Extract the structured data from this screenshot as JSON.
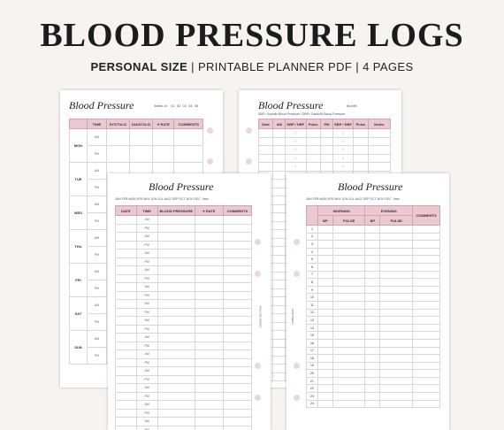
{
  "header": {
    "title": "BLOOD PRESSURE LOGS",
    "subtitle_bold": "PERSONAL SIZE",
    "subtitle_parts": [
      "PRINTABLE PLANNER PDF",
      "4 PAGES"
    ],
    "separator": "|"
  },
  "accent_color": "#ecc9d0",
  "weekly_page": {
    "title": "Blood Pressure",
    "week_label": "Week of:",
    "week_numbers": [
      "01",
      "02",
      "03",
      "04",
      "05"
    ],
    "columns": [
      "TIME",
      "SYSTOLIC",
      "DIASTOLIC",
      "♥ RATE",
      "COMMENTS"
    ],
    "days": [
      "MON",
      "TUE",
      "WED",
      "THU",
      "FRI",
      "SAT",
      "SUN"
    ],
    "times": [
      "AM",
      "PM"
    ]
  },
  "monthly_page": {
    "title": "Blood Pressure",
    "month_label": "Month:",
    "legend": "SBP= Systolic Blood Pressure / DBP= Diastolic Blood Pressure",
    "columns": [
      "Date",
      "AM",
      "SBP / DBP",
      "Pulse",
      "PM",
      "SBP / DBP",
      "Pulse",
      "Notes"
    ],
    "slash": "/"
  },
  "daily_page": {
    "title": "Blood Pressure",
    "months": [
      "JAN",
      "FEB",
      "MAR",
      "APR",
      "MAY",
      "JUN",
      "JUL",
      "AUG",
      "SEP",
      "OCT",
      "NOV",
      "DEC"
    ],
    "year_label": "Year:",
    "columns": [
      "DATE",
      "TIME",
      "BLOOD PRESSURE",
      "♥ RATE",
      "COMMENTS"
    ],
    "times": [
      "AM",
      "PM"
    ],
    "spine_text": "ADA LOG BOOKS"
  },
  "tracker_page": {
    "title": "Blood Pressure",
    "months": [
      "JAN",
      "FEB",
      "MAR",
      "APR",
      "MAY",
      "JUN",
      "JUL",
      "AUG",
      "SEP",
      "OCT",
      "NOV",
      "DEC"
    ],
    "year_label": "Year:",
    "groups": [
      "MORNING",
      "EVENING"
    ],
    "sub_columns": [
      "BP",
      "PULSE",
      "BP",
      "PULSE"
    ],
    "comments": "COMMENTS",
    "days": [
      "1",
      "2",
      "3",
      "4",
      "5",
      "6",
      "7",
      "8",
      "9",
      "10",
      "11",
      "12",
      "13",
      "14",
      "15",
      "16",
      "17",
      "18",
      "19",
      "20",
      "21",
      "22",
      "23",
      "24"
    ],
    "spine_text": "COPYRIGHT"
  }
}
